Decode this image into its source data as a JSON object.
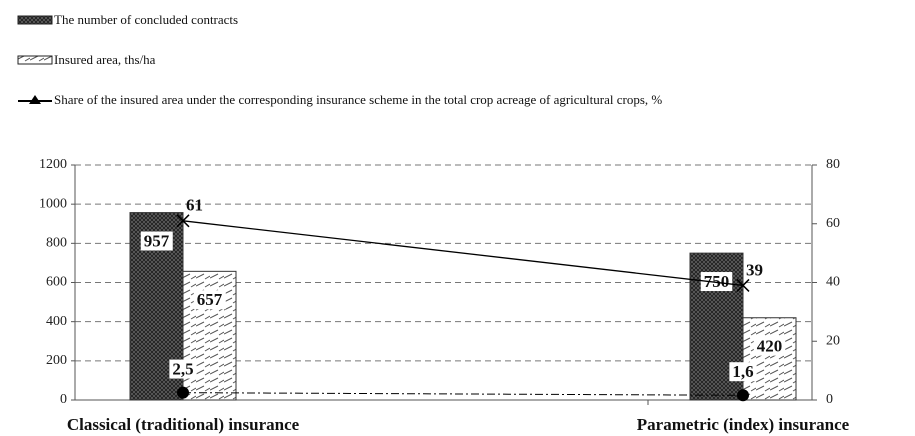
{
  "chart_data": {
    "type": "bar",
    "categories": [
      "Classical (traditional) insurance",
      "Parametric (index) insurance"
    ],
    "series": [
      {
        "name": "The number of concluded contracts",
        "type": "bar",
        "pattern": "crosshatch",
        "color": "#333333",
        "values": [
          957,
          750
        ]
      },
      {
        "name": "Insured area, ths/ha",
        "type": "bar",
        "pattern": "hatch",
        "color": "#333333",
        "values": [
          657,
          420
        ]
      },
      {
        "name": "Share of the insured area under the corresponding insurance scheme in the total crop acreage of agricultural crops, %",
        "type": "line",
        "axis": "y2",
        "marker": "triangle",
        "color": "#000000",
        "values": [
          61,
          39
        ]
      },
      {
        "type": "line",
        "axis": "y2",
        "marker": "circle",
        "dash": "dashdot",
        "color": "#000000",
        "values": [
          2.5,
          1.6
        ],
        "value_labels": [
          "2,5",
          "1,6"
        ]
      }
    ],
    "ylim": [
      0,
      1200
    ],
    "yticks": [
      0,
      200,
      400,
      600,
      800,
      1000,
      1200
    ],
    "y2lim": [
      0,
      80
    ],
    "y2ticks": [
      0,
      20,
      40,
      60,
      80
    ],
    "grid": true
  }
}
